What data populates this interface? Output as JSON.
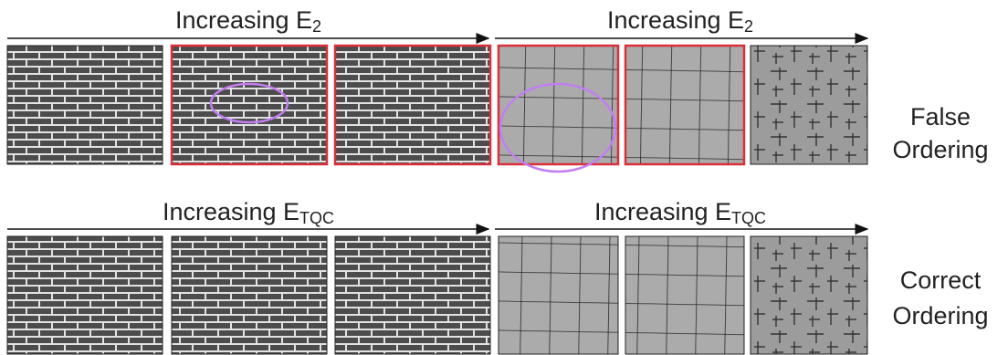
{
  "rows": [
    {
      "heading_left": {
        "text": "Increasing E",
        "subscript": "2"
      },
      "heading_right": {
        "text": "Increasing E",
        "subscript": "2"
      },
      "label": [
        "False",
        "Ordering"
      ]
    },
    {
      "heading_left": {
        "text": "Increasing E",
        "subscript": "TQC"
      },
      "heading_right": {
        "text": "Increasing E",
        "subscript": "TQC"
      },
      "label": [
        "Correct",
        "Ordering"
      ]
    }
  ]
}
